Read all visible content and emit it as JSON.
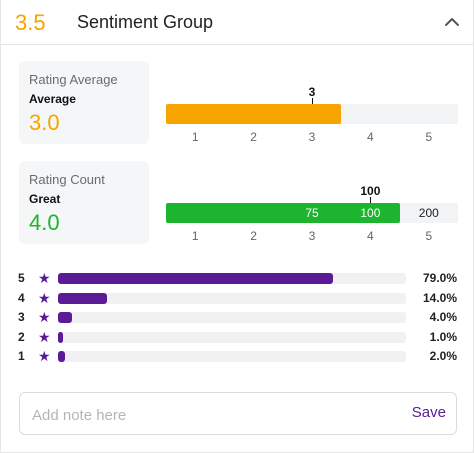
{
  "header": {
    "score": "3.5",
    "title": "Sentiment Group"
  },
  "rating_average": {
    "label": "Rating Average",
    "sub": "Average",
    "value": "3.0",
    "marker": "3",
    "marker_value": 3,
    "scale_min": 0.5,
    "scale_max": 5.5,
    "fill_to": 3.5,
    "ticks": [
      "1",
      "2",
      "3",
      "4",
      "5"
    ],
    "color": "#f7a400"
  },
  "rating_count": {
    "label": "Rating Count",
    "sub": "Great",
    "value": "4.0",
    "marker": "100",
    "marker_value": 4,
    "scale_min": 0.5,
    "scale_max": 5.5,
    "fill_to": 4.5,
    "ticks": [
      "1",
      "2",
      "3",
      "4",
      "5"
    ],
    "in_bar": [
      {
        "text": "75",
        "at": 3
      },
      {
        "text": "100",
        "at": 4
      },
      {
        "text": "200",
        "at": 5
      }
    ],
    "color": "#1db52f"
  },
  "distribution": [
    {
      "stars": "5",
      "pct": "79.0%",
      "fraction": 0.79
    },
    {
      "stars": "4",
      "pct": "14.0%",
      "fraction": 0.14
    },
    {
      "stars": "3",
      "pct": "4.0%",
      "fraction": 0.04
    },
    {
      "stars": "2",
      "pct": "1.0%",
      "fraction": 0.01
    },
    {
      "stars": "1",
      "pct": "2.0%",
      "fraction": 0.02
    }
  ],
  "distribution_color": "#5b1a96",
  "note": {
    "placeholder": "Add note here",
    "value": "",
    "save_label": "Save"
  },
  "icons": {
    "collapse": "chevron-up-icon",
    "star": "star-icon"
  }
}
